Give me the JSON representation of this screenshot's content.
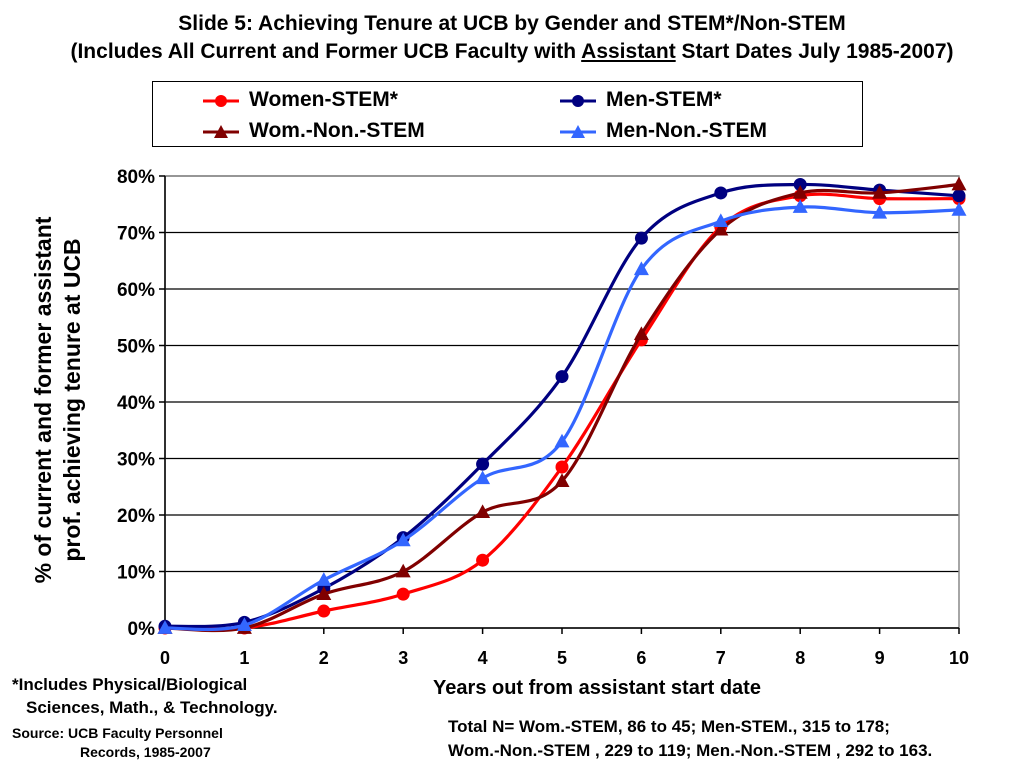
{
  "header": {
    "title_line1": "Slide 5: Achieving Tenure at UCB by Gender and STEM*/Non-STEM",
    "title_line2_pre": "(Includes All Current and Former UCB Faculty with ",
    "title_line2_u": "Assistant",
    "title_line2_post": " Start Dates July 1985-2007)"
  },
  "legend": {
    "items": [
      {
        "label": "Women-STEM*",
        "color": "#ff0000",
        "marker": "circle"
      },
      {
        "label": "Men-STEM*",
        "color": "#000080",
        "marker": "circle"
      },
      {
        "label": "Wom.-Non.-STEM",
        "color": "#800000",
        "marker": "triangle"
      },
      {
        "label": "Men-Non.-STEM",
        "color": "#3366ff",
        "marker": "triangle"
      }
    ]
  },
  "notes": {
    "footnote_line1": "*Includes Physical/Biological",
    "footnote_line2": "Sciences, Math., & Technology.",
    "source_line1": "Source: UCB Faculty Personnel",
    "source_line2": "Records, 1985-2007",
    "total_line1": "Total N= Wom.-STEM, 86 to 45; Men-STEM., 315 to 178;",
    "total_line2": "Wom.-Non.-STEM , 229 to 119; Men.-Non.-STEM , 292 to 163."
  },
  "chart_data": {
    "type": "line",
    "title": "",
    "xlabel": "Years out from assistant start date",
    "ylabel_line1": "% of current and former assistant",
    "ylabel_line2": "prof. achieving tenure at UCB",
    "x": [
      0,
      1,
      2,
      3,
      4,
      5,
      6,
      7,
      8,
      9,
      10
    ],
    "xlim": [
      0,
      10
    ],
    "ylim": [
      0,
      80
    ],
    "yticks": [
      0,
      10,
      20,
      30,
      40,
      50,
      60,
      70,
      80
    ],
    "ytick_labels": [
      "0%",
      "10%",
      "20%",
      "30%",
      "40%",
      "50%",
      "60%",
      "70%",
      "80%"
    ],
    "grid": "horizontal",
    "legend_position": "top",
    "series": [
      {
        "name": "Women-STEM*",
        "color": "#ff0000",
        "marker": "circle",
        "values": [
          0,
          0,
          3,
          6,
          12,
          28.5,
          51,
          71,
          76.5,
          76,
          76
        ]
      },
      {
        "name": "Men-STEM*",
        "color": "#000080",
        "marker": "circle",
        "values": [
          0.3,
          1,
          7,
          16,
          29,
          44.5,
          69,
          77,
          78.5,
          77.5,
          76.5
        ]
      },
      {
        "name": "Wom.-Non.-STEM",
        "color": "#800000",
        "marker": "triangle",
        "values": [
          0,
          0,
          6,
          10,
          20.5,
          26,
          52,
          70.5,
          77,
          77,
          78.5
        ]
      },
      {
        "name": "Men-Non.-STEM",
        "color": "#3366ff",
        "marker": "triangle",
        "values": [
          0,
          0.5,
          8.5,
          15.5,
          26.5,
          33,
          63.5,
          72,
          74.5,
          73.5,
          74
        ]
      }
    ]
  }
}
